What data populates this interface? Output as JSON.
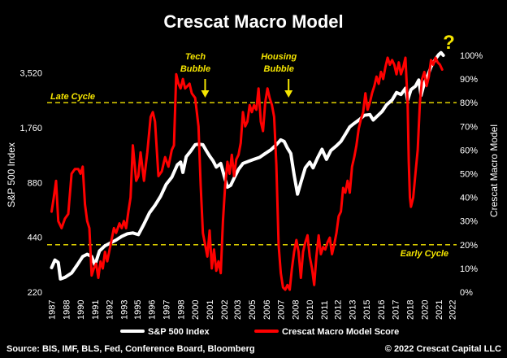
{
  "chart_data": {
    "type": "line",
    "title": "Crescat Macro Model",
    "ylabel_left": "S&P 500 Index",
    "ylabel_right": "Crescat Macro Model",
    "left_axis": {
      "scale": "log",
      "range": [
        220,
        4400
      ],
      "ticks": [
        "220",
        "440",
        "880",
        "1,760",
        "3,520"
      ],
      "tick_values": [
        220,
        440,
        880,
        1760,
        3520
      ]
    },
    "right_axis": {
      "scale": "linear",
      "range": [
        0,
        100
      ],
      "ticks": [
        "0%",
        "10%",
        "20%",
        "30%",
        "40%",
        "50%",
        "60%",
        "70%",
        "80%",
        "90%",
        "100%"
      ],
      "tick_values": [
        0,
        10,
        20,
        30,
        40,
        50,
        60,
        70,
        80,
        90,
        100
      ]
    },
    "x_ticks": [
      "1987",
      "1988",
      "1990",
      "1991",
      "1992",
      "1993",
      "1995",
      "1996",
      "1997",
      "1998",
      "2000",
      "2001",
      "2002",
      "2003",
      "2005",
      "2006",
      "2007",
      "2008",
      "2010",
      "2011",
      "2012",
      "2013",
      "2015",
      "2016",
      "2017",
      "2018",
      "2020",
      "2021",
      "2022"
    ],
    "x_tick_values": [
      1987,
      1988.3,
      1989.6,
      1990.9,
      1992.2,
      1993.5,
      1994.7,
      1996.0,
      1997.3,
      1998.6,
      1999.9,
      2001.2,
      2002.5,
      2003.7,
      2005.0,
      2006.3,
      2007.6,
      2008.9,
      2010.2,
      2011.5,
      2012.7,
      2014.0,
      2015.3,
      2016.6,
      2017.9,
      2019.2,
      2020.5,
      2021.8,
      2023.0
    ],
    "x_range": [
      1986.6,
      2023.4
    ],
    "reference_lines": [
      {
        "label": "Late Cycle",
        "value": 80
      },
      {
        "label": "Early Cycle",
        "value": 20
      }
    ],
    "annotations": [
      {
        "label": "Tech Bubble",
        "x": 2000.8,
        "line1": "Tech",
        "line2": "Bubble"
      },
      {
        "label": "Housing Bubble",
        "x": 2008.3,
        "line1": "Housing",
        "line2": "Bubble"
      },
      {
        "label": "?",
        "x": 2022.7
      }
    ],
    "series": [
      {
        "name": "S&P 500 Index",
        "color": "#ffffff",
        "axis": "left",
        "points": [
          [
            1987.0,
            300
          ],
          [
            1987.3,
            330
          ],
          [
            1987.6,
            320
          ],
          [
            1987.8,
            260
          ],
          [
            1988.2,
            265
          ],
          [
            1988.8,
            280
          ],
          [
            1989.3,
            310
          ],
          [
            1989.8,
            345
          ],
          [
            1990.2,
            355
          ],
          [
            1990.6,
            345
          ],
          [
            1990.9,
            310
          ],
          [
            1991.3,
            370
          ],
          [
            1991.8,
            395
          ],
          [
            1992.3,
            410
          ],
          [
            1992.8,
            425
          ],
          [
            1993.3,
            445
          ],
          [
            1993.8,
            460
          ],
          [
            1994.3,
            465
          ],
          [
            1994.8,
            455
          ],
          [
            1995.3,
            520
          ],
          [
            1995.8,
            600
          ],
          [
            1996.3,
            660
          ],
          [
            1996.8,
            740
          ],
          [
            1997.3,
            860
          ],
          [
            1997.8,
            940
          ],
          [
            1998.3,
            1100
          ],
          [
            1998.6,
            1140
          ],
          [
            1998.8,
            1000
          ],
          [
            1999.1,
            1220
          ],
          [
            1999.5,
            1310
          ],
          [
            1999.9,
            1420
          ],
          [
            2000.2,
            1430
          ],
          [
            2000.6,
            1420
          ],
          [
            2000.9,
            1320
          ],
          [
            2001.2,
            1230
          ],
          [
            2001.5,
            1160
          ],
          [
            2001.8,
            1070
          ],
          [
            2002.2,
            1120
          ],
          [
            2002.5,
            960
          ],
          [
            2002.8,
            830
          ],
          [
            2003.1,
            850
          ],
          [
            2003.4,
            930
          ],
          [
            2003.8,
            1040
          ],
          [
            2004.2,
            1120
          ],
          [
            2004.7,
            1150
          ],
          [
            2005.2,
            1180
          ],
          [
            2005.7,
            1210
          ],
          [
            2006.2,
            1270
          ],
          [
            2006.7,
            1330
          ],
          [
            2007.2,
            1420
          ],
          [
            2007.6,
            1510
          ],
          [
            2007.9,
            1480
          ],
          [
            2008.2,
            1360
          ],
          [
            2008.5,
            1270
          ],
          [
            2008.8,
            970
          ],
          [
            2009.1,
            760
          ],
          [
            2009.4,
            880
          ],
          [
            2009.8,
            1060
          ],
          [
            2010.2,
            1140
          ],
          [
            2010.5,
            1060
          ],
          [
            2010.9,
            1200
          ],
          [
            2011.3,
            1340
          ],
          [
            2011.7,
            1180
          ],
          [
            2012.1,
            1320
          ],
          [
            2012.6,
            1400
          ],
          [
            2013.0,
            1480
          ],
          [
            2013.4,
            1620
          ],
          [
            2013.8,
            1780
          ],
          [
            2014.2,
            1860
          ],
          [
            2014.7,
            1960
          ],
          [
            2015.1,
            2060
          ],
          [
            2015.6,
            2080
          ],
          [
            2015.9,
            1940
          ],
          [
            2016.2,
            2020
          ],
          [
            2016.7,
            2160
          ],
          [
            2017.1,
            2350
          ],
          [
            2017.6,
            2500
          ],
          [
            2018.0,
            2750
          ],
          [
            2018.4,
            2680
          ],
          [
            2018.8,
            2900
          ],
          [
            2019.0,
            2500
          ],
          [
            2019.3,
            2850
          ],
          [
            2019.7,
            2980
          ],
          [
            2020.0,
            3220
          ],
          [
            2020.2,
            2650
          ],
          [
            2020.5,
            3100
          ],
          [
            2020.8,
            3400
          ],
          [
            2021.1,
            3800
          ],
          [
            2021.5,
            4200
          ],
          [
            2021.8,
            4450
          ],
          [
            2022.0,
            4550
          ],
          [
            2022.2,
            4400
          ]
        ]
      },
      {
        "name": "Crescat Macro Model Score",
        "color": "#ff0000",
        "axis": "right",
        "points": [
          [
            1987.0,
            34
          ],
          [
            1987.2,
            40
          ],
          [
            1987.4,
            47
          ],
          [
            1987.6,
            30
          ],
          [
            1987.9,
            27
          ],
          [
            1988.2,
            31
          ],
          [
            1988.5,
            33
          ],
          [
            1988.8,
            50
          ],
          [
            1989.1,
            52
          ],
          [
            1989.4,
            52
          ],
          [
            1989.6,
            50
          ],
          [
            1989.8,
            53
          ],
          [
            1990.0,
            37
          ],
          [
            1990.2,
            30
          ],
          [
            1990.4,
            27
          ],
          [
            1990.6,
            7
          ],
          [
            1990.8,
            10
          ],
          [
            1991.0,
            12
          ],
          [
            1991.2,
            6
          ],
          [
            1991.4,
            13
          ],
          [
            1991.6,
            10
          ],
          [
            1991.8,
            17
          ],
          [
            1992.0,
            13
          ],
          [
            1992.3,
            20
          ],
          [
            1992.6,
            27
          ],
          [
            1992.8,
            25
          ],
          [
            1993.1,
            29
          ],
          [
            1993.3,
            27
          ],
          [
            1993.5,
            30
          ],
          [
            1993.7,
            27
          ],
          [
            1993.9,
            34
          ],
          [
            1994.1,
            40
          ],
          [
            1994.3,
            62
          ],
          [
            1994.6,
            47
          ],
          [
            1994.8,
            49
          ],
          [
            1995.0,
            59
          ],
          [
            1995.3,
            47
          ],
          [
            1995.6,
            59
          ],
          [
            1995.9,
            74
          ],
          [
            1996.1,
            76
          ],
          [
            1996.3,
            72
          ],
          [
            1996.6,
            49
          ],
          [
            1996.9,
            51
          ],
          [
            1997.2,
            57
          ],
          [
            1997.5,
            53
          ],
          [
            1997.8,
            60
          ],
          [
            1998.0,
            62
          ],
          [
            1998.2,
            92
          ],
          [
            1998.4,
            88
          ],
          [
            1998.6,
            86
          ],
          [
            1998.8,
            90
          ],
          [
            1999.0,
            86
          ],
          [
            1999.2,
            87
          ],
          [
            1999.4,
            88
          ],
          [
            1999.6,
            84
          ],
          [
            1999.9,
            82
          ],
          [
            2000.2,
            70
          ],
          [
            2000.4,
            45
          ],
          [
            2000.6,
            25
          ],
          [
            2000.8,
            20
          ],
          [
            2001.0,
            15
          ],
          [
            2001.2,
            26
          ],
          [
            2001.4,
            10
          ],
          [
            2001.6,
            18
          ],
          [
            2001.8,
            9
          ],
          [
            2002.0,
            13
          ],
          [
            2002.2,
            8
          ],
          [
            2002.4,
            30
          ],
          [
            2002.6,
            45
          ],
          [
            2002.8,
            55
          ],
          [
            2003.0,
            50
          ],
          [
            2003.2,
            58
          ],
          [
            2003.4,
            49
          ],
          [
            2003.6,
            56
          ],
          [
            2003.8,
            58
          ],
          [
            2004.0,
            63
          ],
          [
            2004.2,
            76
          ],
          [
            2004.4,
            70
          ],
          [
            2004.6,
            72
          ],
          [
            2004.8,
            79
          ],
          [
            2005.0,
            76
          ],
          [
            2005.2,
            79
          ],
          [
            2005.4,
            77
          ],
          [
            2005.6,
            86
          ],
          [
            2005.8,
            72
          ],
          [
            2006.0,
            68
          ],
          [
            2006.2,
            80
          ],
          [
            2006.4,
            86
          ],
          [
            2006.6,
            82
          ],
          [
            2006.8,
            79
          ],
          [
            2007.0,
            74
          ],
          [
            2007.2,
            54
          ],
          [
            2007.4,
            20
          ],
          [
            2007.6,
            8
          ],
          [
            2007.8,
            2
          ],
          [
            2008.0,
            1
          ],
          [
            2008.2,
            3
          ],
          [
            2008.4,
            1
          ],
          [
            2008.6,
            10
          ],
          [
            2008.8,
            17
          ],
          [
            2009.0,
            22
          ],
          [
            2009.2,
            17
          ],
          [
            2009.4,
            6
          ],
          [
            2009.6,
            17
          ],
          [
            2009.8,
            21
          ],
          [
            2010.0,
            24
          ],
          [
            2010.2,
            15
          ],
          [
            2010.4,
            10
          ],
          [
            2010.6,
            3
          ],
          [
            2010.8,
            15
          ],
          [
            2011.0,
            24
          ],
          [
            2011.2,
            16
          ],
          [
            2011.4,
            19
          ],
          [
            2011.6,
            18
          ],
          [
            2011.8,
            21
          ],
          [
            2012.0,
            23
          ],
          [
            2012.2,
            16
          ],
          [
            2012.4,
            20
          ],
          [
            2012.6,
            25
          ],
          [
            2012.8,
            32
          ],
          [
            2013.0,
            34
          ],
          [
            2013.2,
            44
          ],
          [
            2013.4,
            42
          ],
          [
            2013.6,
            47
          ],
          [
            2013.8,
            42
          ],
          [
            2014.0,
            53
          ],
          [
            2014.2,
            57
          ],
          [
            2014.4,
            62
          ],
          [
            2014.6,
            69
          ],
          [
            2014.8,
            73
          ],
          [
            2015.0,
            76
          ],
          [
            2015.2,
            84
          ],
          [
            2015.4,
            77
          ],
          [
            2015.6,
            80
          ],
          [
            2015.8,
            84
          ],
          [
            2016.0,
            87
          ],
          [
            2016.2,
            91
          ],
          [
            2016.4,
            88
          ],
          [
            2016.6,
            93
          ],
          [
            2016.8,
            90
          ],
          [
            2017.0,
            95
          ],
          [
            2017.2,
            99
          ],
          [
            2017.4,
            96
          ],
          [
            2017.6,
            98
          ],
          [
            2017.8,
            96
          ],
          [
            2018.0,
            92
          ],
          [
            2018.2,
            97
          ],
          [
            2018.4,
            92
          ],
          [
            2018.6,
            95
          ],
          [
            2018.8,
            99
          ],
          [
            2019.0,
            80
          ],
          [
            2019.1,
            55
          ],
          [
            2019.2,
            40
          ],
          [
            2019.3,
            36
          ],
          [
            2019.5,
            40
          ],
          [
            2019.7,
            50
          ],
          [
            2019.9,
            60
          ],
          [
            2020.1,
            80
          ],
          [
            2020.3,
            90
          ],
          [
            2020.5,
            93
          ],
          [
            2020.7,
            87
          ],
          [
            2020.9,
            91
          ],
          [
            2021.1,
            98
          ],
          [
            2021.3,
            96
          ],
          [
            2021.5,
            99
          ],
          [
            2021.7,
            97
          ],
          [
            2021.9,
            96
          ],
          [
            2022.1,
            94
          ]
        ]
      }
    ],
    "legend": {
      "position": "bottom",
      "entries": [
        "S&P 500 Index",
        "Crescat Macro Model Score"
      ]
    }
  },
  "footer": {
    "source": "Source: BIS, IMF, BLS, Fed, Conference Board, Bloomberg",
    "copyright": "© 2022 Crescat Capital LLC"
  },
  "colors": {
    "background": "#000000",
    "reference": "#f5e500",
    "annotation": "#f5e500",
    "sp500": "#ffffff",
    "model": "#ff0000"
  }
}
